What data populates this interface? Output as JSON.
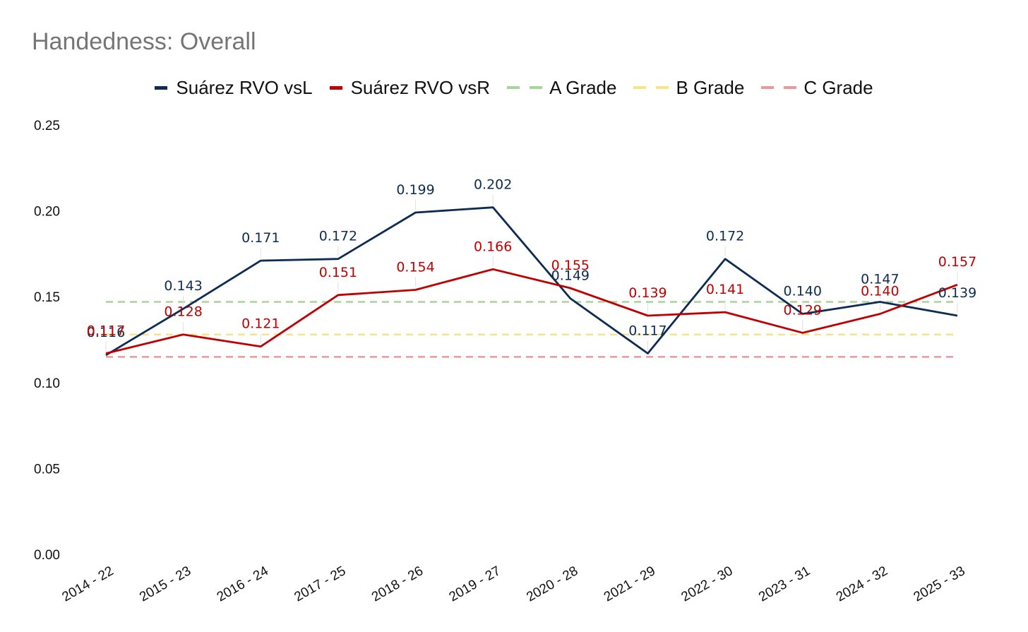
{
  "chart_data": {
    "type": "line",
    "title": "Handedness: Overall",
    "categories": [
      "2014 - 22",
      "2015 - 23",
      "2016 - 24",
      "2017 - 25",
      "2018 - 26",
      "2019 - 27",
      "2020 - 28",
      "2021 - 29",
      "2022 - 30",
      "2023 - 31",
      "2024 - 32",
      "2025 - 33"
    ],
    "series": [
      {
        "name": "Suárez RVO vsL",
        "color": "#0d2c54",
        "style": "solid",
        "values": [
          0.116,
          0.143,
          0.171,
          0.172,
          0.199,
          0.202,
          0.149,
          0.117,
          0.172,
          0.14,
          0.147,
          0.139
        ],
        "labels": [
          "0.116",
          "0.143",
          "0.171",
          "0.172",
          "0.199",
          "0.202",
          "0.149",
          "0.117",
          "0.172",
          "0.140",
          "0.147",
          "0.139"
        ]
      },
      {
        "name": "Suárez RVO vsR",
        "color": "#c00000",
        "style": "solid",
        "values": [
          0.117,
          0.128,
          0.121,
          0.151,
          0.154,
          0.166,
          0.155,
          0.139,
          0.141,
          0.129,
          0.14,
          0.157
        ],
        "labels": [
          "0.117",
          "0.128",
          "0.121",
          "0.151",
          "0.154",
          "0.166",
          "0.155",
          "0.139",
          "0.141",
          "0.129",
          "0.140",
          "0.157"
        ]
      }
    ],
    "reference_lines": [
      {
        "name": "A Grade",
        "value": 0.147,
        "color": "#a8d39a"
      },
      {
        "name": "B Grade",
        "value": 0.128,
        "color": "#f7e38a"
      },
      {
        "name": "C Grade",
        "value": 0.115,
        "color": "#e8999a"
      }
    ],
    "ylim": [
      0,
      0.25
    ],
    "yticks": [
      "0.00",
      "0.05",
      "0.10",
      "0.15",
      "0.20",
      "0.25"
    ],
    "legend_position": "top-center",
    "grid": false
  }
}
